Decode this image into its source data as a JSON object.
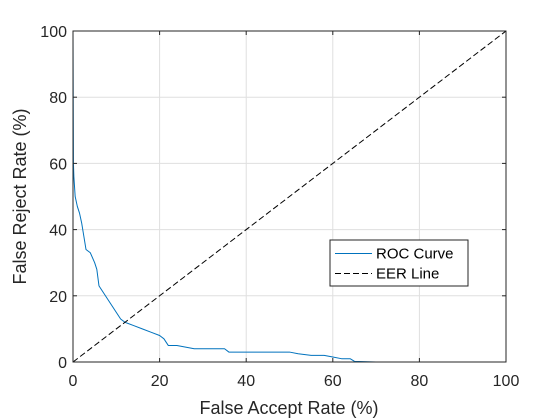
{
  "chart_data": {
    "type": "line",
    "title": "",
    "xlabel": "False Accept Rate (%)",
    "ylabel": "False Reject Rate (%)",
    "xlim": [
      0,
      100
    ],
    "ylim": [
      0,
      100
    ],
    "xticks": [
      0,
      20,
      40,
      60,
      80,
      100
    ],
    "yticks": [
      0,
      20,
      40,
      60,
      80,
      100
    ],
    "xtick_labels": [
      "0",
      "20",
      "40",
      "60",
      "80",
      "100"
    ],
    "ytick_labels": [
      "0",
      "20",
      "40",
      "60",
      "80",
      "100"
    ],
    "grid": true,
    "legend_position": "center-right",
    "series": [
      {
        "name": "ROC Curve",
        "style": "solid",
        "color": "#0072BD",
        "x": [
          0,
          0.1,
          0.2,
          0.5,
          1,
          1.5,
          2,
          2.5,
          3,
          4,
          5,
          5.5,
          6,
          7,
          8,
          9,
          10,
          11,
          12,
          14,
          16,
          18,
          20,
          21,
          22,
          24,
          26,
          28,
          30,
          32,
          35,
          36,
          38,
          40,
          45,
          50,
          52,
          55,
          58,
          60,
          62,
          64,
          65,
          70,
          80,
          90,
          100
        ],
        "y": [
          100,
          60,
          56,
          50,
          47,
          45,
          42,
          38,
          34,
          33,
          30,
          28,
          23,
          21,
          19,
          17,
          15,
          13,
          12,
          11,
          10,
          9,
          8,
          7,
          5,
          5,
          4.5,
          4,
          4,
          4,
          4,
          3,
          3,
          3,
          3,
          3,
          2.5,
          2,
          2,
          1.5,
          1,
          1,
          0.2,
          0,
          0,
          0,
          0
        ]
      },
      {
        "name": "EER Line",
        "style": "dashed",
        "color": "#000000",
        "x": [
          0,
          100
        ],
        "y": [
          0,
          100
        ]
      }
    ]
  }
}
